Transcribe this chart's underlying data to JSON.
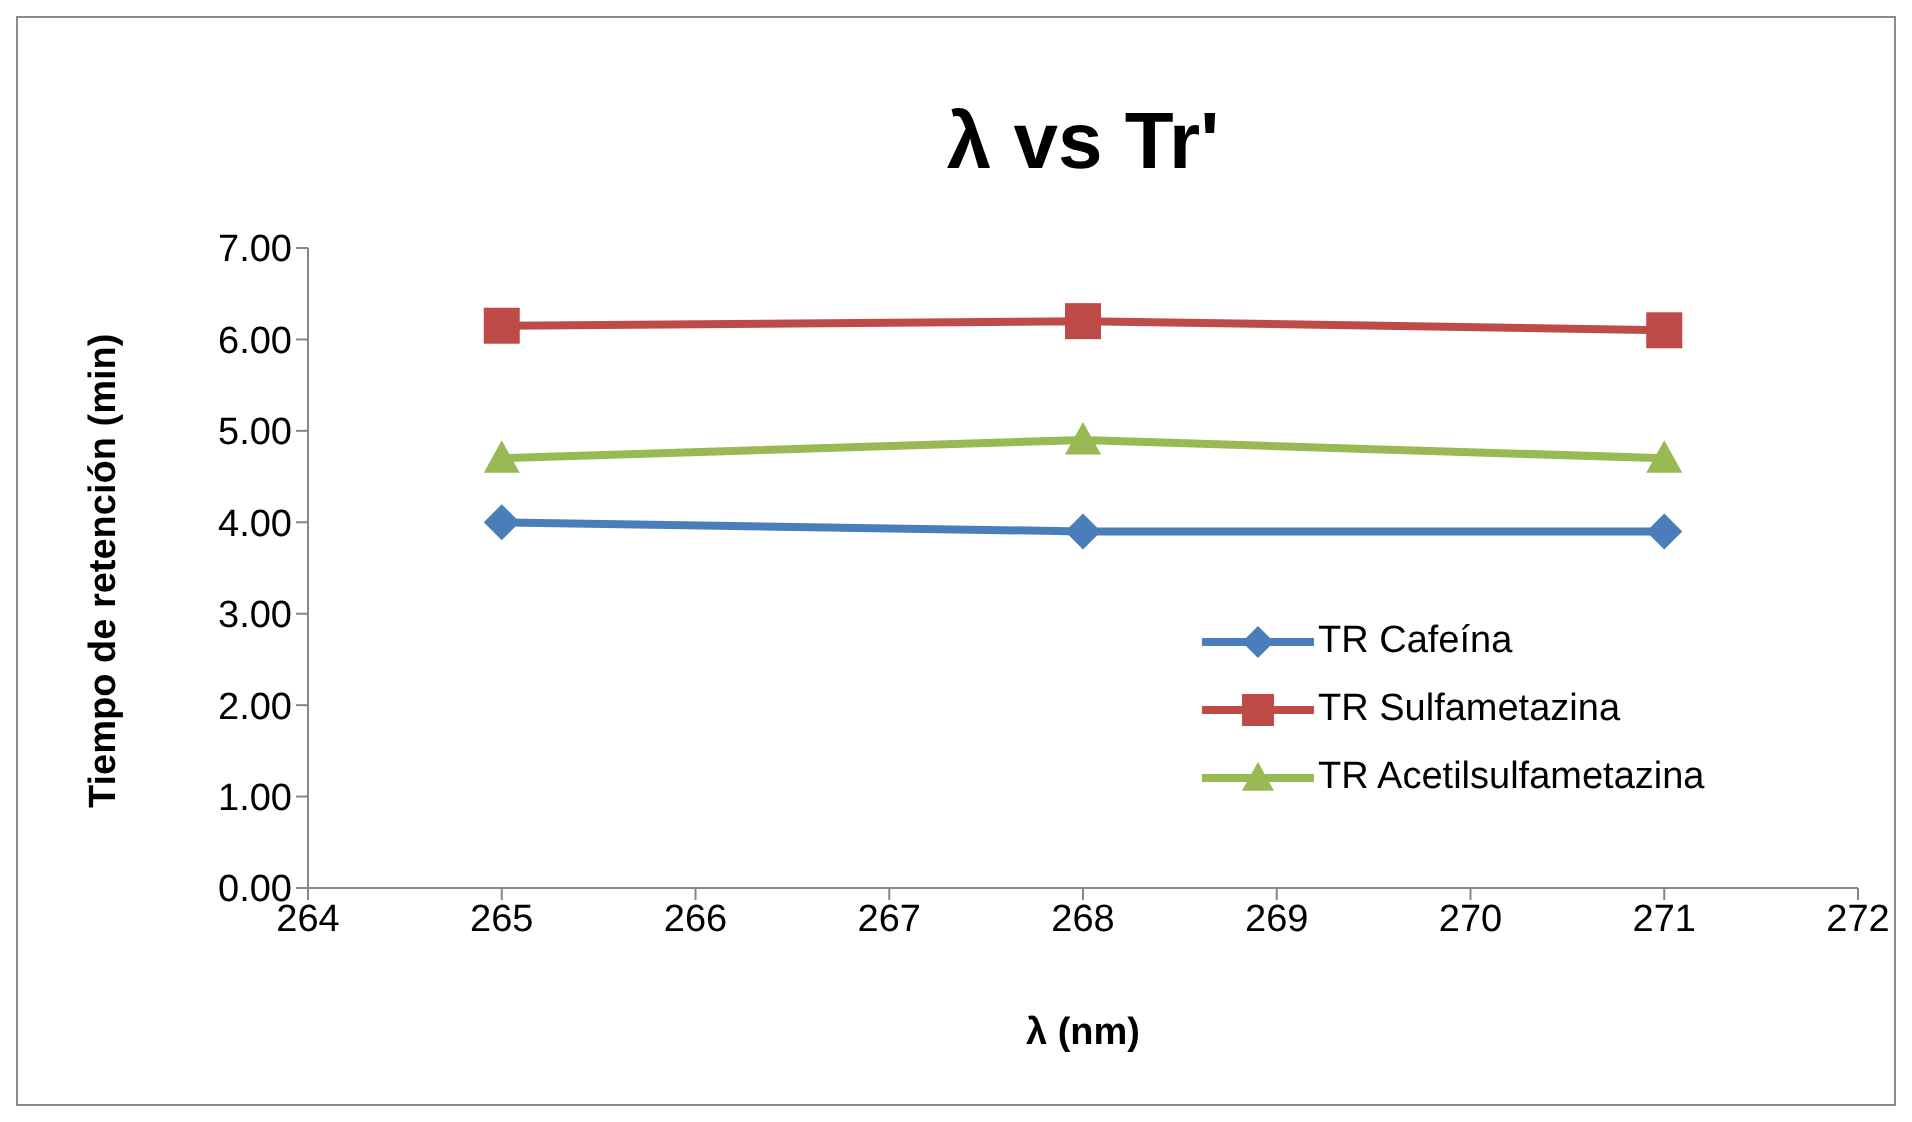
{
  "chart_data": {
    "type": "line",
    "title": "λ vs Tr'",
    "xlabel": "λ (nm)",
    "ylabel": "Tiempo de retención (min)",
    "x": [
      265,
      268,
      271
    ],
    "series": [
      {
        "name": "TR Cafeína",
        "color": "#4a7ebb",
        "values": [
          4.0,
          3.9,
          3.9
        ],
        "marker": "diamond"
      },
      {
        "name": "TR Sulfametazina",
        "color": "#be4b48",
        "values": [
          6.15,
          6.2,
          6.1
        ],
        "marker": "square"
      },
      {
        "name": "TR Acetilsulfametazina",
        "color": "#98b954",
        "values": [
          4.7,
          4.9,
          4.7
        ],
        "marker": "triangle"
      }
    ],
    "xlim": [
      264,
      272
    ],
    "xticks": [
      264,
      265,
      266,
      267,
      268,
      269,
      270,
      271,
      272
    ],
    "ylim": [
      0,
      7
    ],
    "yticks": [
      {
        "value": 0,
        "label": "0.00"
      },
      {
        "value": 1,
        "label": "1.00"
      },
      {
        "value": 2,
        "label": "2.00"
      },
      {
        "value": 3,
        "label": "3.00"
      },
      {
        "value": 4,
        "label": "4.00"
      },
      {
        "value": 5,
        "label": "5.00"
      },
      {
        "value": 6,
        "label": "6.00"
      },
      {
        "value": 7,
        "label": "7.00"
      }
    ],
    "grid": false,
    "legend": "right",
    "line_style": "solid"
  }
}
